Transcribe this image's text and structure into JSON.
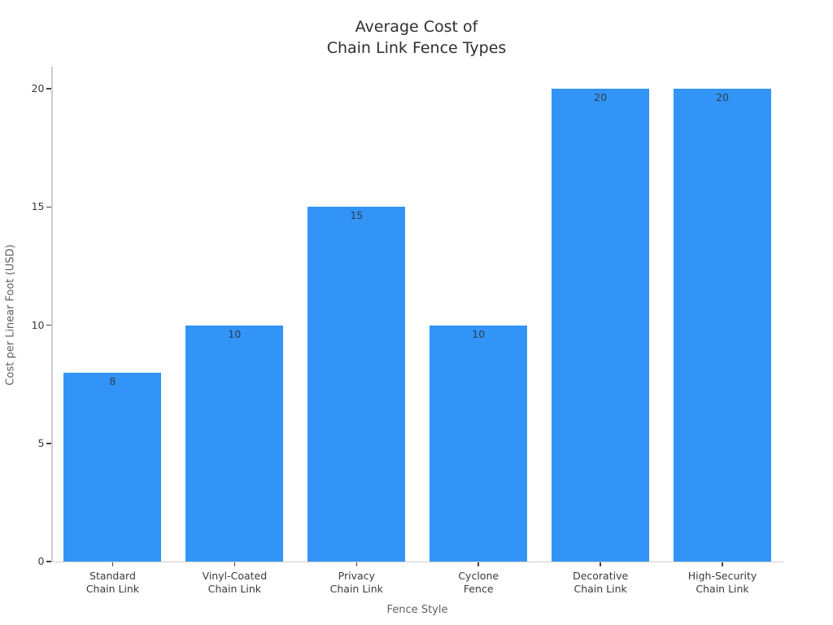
{
  "figure": {
    "background": "#ffffff"
  },
  "chart_data": {
    "type": "bar",
    "title": "Average Cost of\nChain Link Fence Types",
    "xlabel": "Fence Style",
    "ylabel": "Cost per Linear Foot (USD)",
    "categories": [
      "Standard\nChain Link",
      "Vinyl-Coated\nChain Link",
      "Privacy\nChain Link",
      "Cyclone\nFence",
      "Decorative\nChain Link",
      "High-Security\nChain Link"
    ],
    "values": [
      8,
      10,
      15,
      10,
      20,
      20
    ],
    "bar_value_labels": [
      "8",
      "10",
      "15",
      "10",
      "20",
      "20"
    ],
    "ylim": [
      0,
      20
    ],
    "yticks": [
      0,
      5,
      10,
      15,
      20
    ],
    "ytick_labels": [
      "0",
      "5",
      "10",
      "15",
      "20"
    ],
    "grid": false,
    "legend": false,
    "colors": {
      "bar": "#3294F6",
      "bar_value_label": "#2b3e52",
      "tick_label": "#3a3a3a",
      "axis_title": "#606060",
      "title": "#2e2e2e",
      "spine": "#cccccc",
      "tick_mark": "#444444",
      "background": "#ffffff"
    }
  }
}
